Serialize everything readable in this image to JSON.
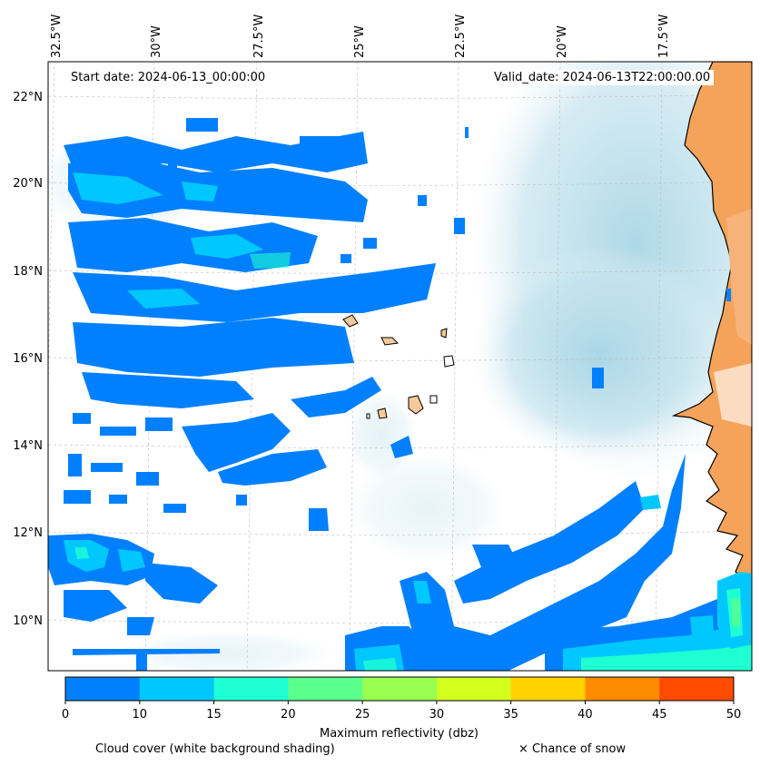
{
  "header": {
    "start_date": "Start date: 2024-06-13_00:00:00",
    "valid_date": "Valid_date: 2024-06-13T22:00:00.00"
  },
  "axes": {
    "lon_labels": [
      "32.5°W",
      "30°W",
      "27.5°W",
      "25°W",
      "22.5°W",
      "20°W",
      "17.5°W"
    ],
    "lat_labels": [
      "22°N",
      "20°N",
      "18°N",
      "16°N",
      "14°N",
      "12°N",
      "10°N"
    ]
  },
  "colorbar": {
    "ticks": [
      "0",
      "10",
      "15",
      "20",
      "25",
      "30",
      "35",
      "40",
      "45",
      "50"
    ],
    "colors": [
      "#0080ff",
      "#00c8ff",
      "#1effd2",
      "#5aff8c",
      "#96ff50",
      "#d2ff1e",
      "#ffd200",
      "#ff8c00",
      "#ff4b00"
    ],
    "label": "Maximum reflectivity (dbz)"
  },
  "legend": {
    "cloud_cover": "Cloud cover (white background shading)",
    "snow": "× Chance of snow"
  },
  "colors": {
    "land": "#f5a35a",
    "island": "#f8c89a",
    "cloud_shade": "#bfe0ea",
    "reflectivity_low": "#0080ff",
    "reflectivity_mid": "#00c8ff",
    "reflectivity_high": "#1effd2"
  }
}
